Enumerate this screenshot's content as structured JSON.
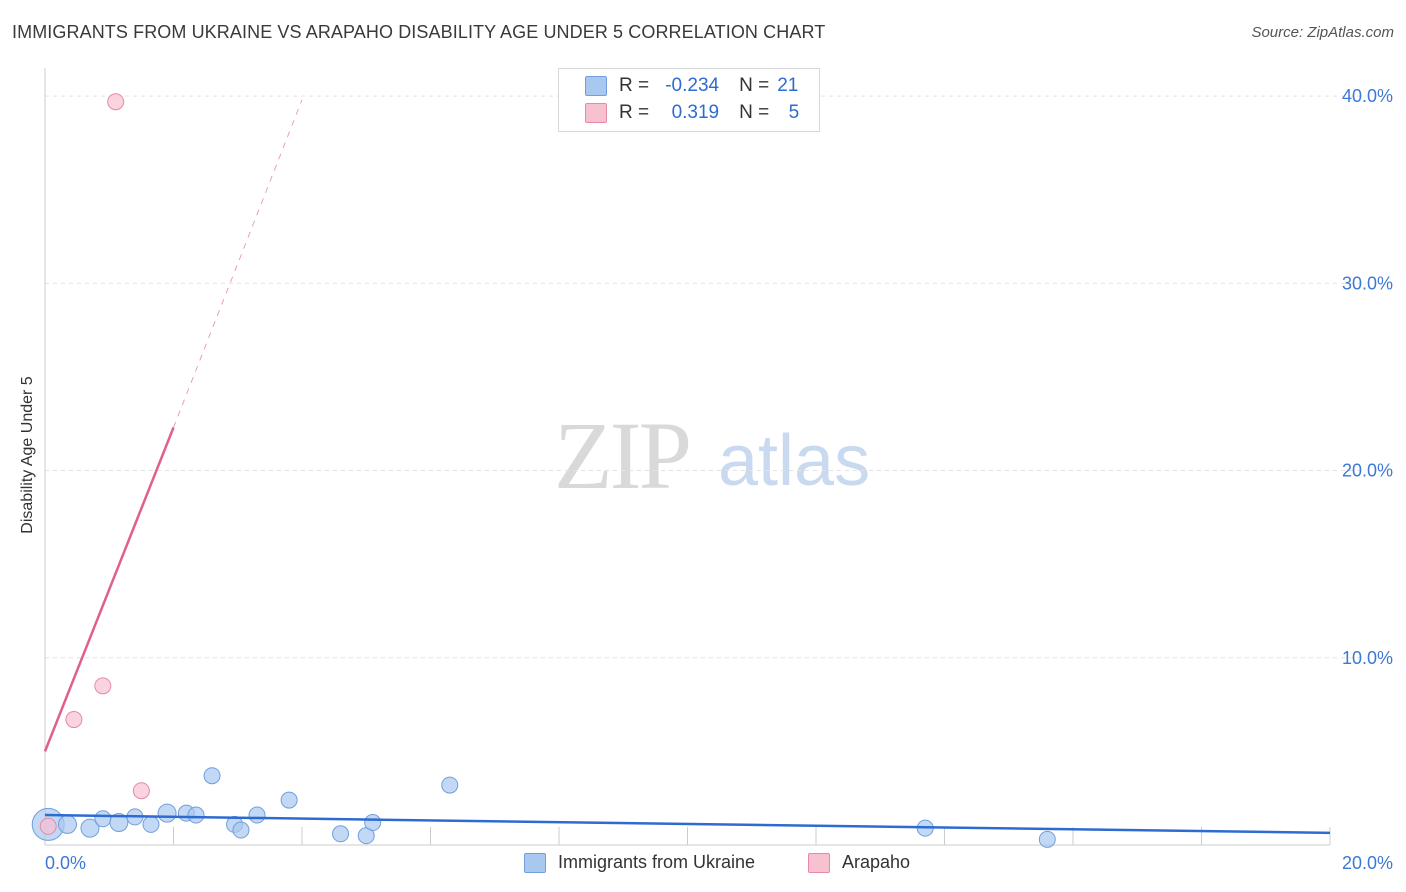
{
  "title": "IMMIGRANTS FROM UKRAINE VS ARAPAHO DISABILITY AGE UNDER 5 CORRELATION CHART",
  "source": "Source: ZipAtlas.com",
  "watermark": {
    "zip": "ZIP",
    "atlas": "atlas"
  },
  "legend_stats": [
    {
      "r_label": "R =",
      "r_value": "-0.234",
      "n_label": "N =",
      "n_value": "21",
      "color": "#a9c8f0",
      "border": "#6f9fdc"
    },
    {
      "r_label": "R =",
      "r_value": "0.319",
      "n_label": "N =",
      "n_value": "5",
      "color": "#f7c1d0",
      "border": "#e58aa7"
    }
  ],
  "chart_data": {
    "type": "scatter",
    "title": "IMMIGRANTS FROM UKRAINE VS ARAPAHO DISABILITY AGE UNDER 5 CORRELATION CHART",
    "xlabel": "",
    "ylabel": "Disability Age Under 5",
    "xlim": [
      0,
      20
    ],
    "ylim": [
      0,
      41.5
    ],
    "x_tick_labels": [
      "0.0%",
      "20.0%"
    ],
    "y_ticks": [
      10,
      20,
      30,
      40
    ],
    "y_tick_labels": [
      "10.0%",
      "20.0%",
      "30.0%",
      "40.0%"
    ],
    "grid": true,
    "legend_position": "bottom",
    "series": [
      {
        "name": "Immigrants from Ukraine",
        "color": "#a9c8f0",
        "stroke": "#6f9fdc",
        "line_color": "#2e6bd1",
        "points": [
          {
            "x": 0.05,
            "y": 1.1,
            "size": 16
          },
          {
            "x": 0.35,
            "y": 1.1,
            "size": 9
          },
          {
            "x": 0.7,
            "y": 0.9,
            "size": 9
          },
          {
            "x": 0.9,
            "y": 1.4,
            "size": 8
          },
          {
            "x": 1.15,
            "y": 1.2,
            "size": 9
          },
          {
            "x": 1.4,
            "y": 1.5,
            "size": 8
          },
          {
            "x": 1.65,
            "y": 1.1,
            "size": 8
          },
          {
            "x": 1.9,
            "y": 1.7,
            "size": 9
          },
          {
            "x": 2.2,
            "y": 1.7,
            "size": 8
          },
          {
            "x": 2.35,
            "y": 1.6,
            "size": 8
          },
          {
            "x": 2.6,
            "y": 3.7,
            "size": 8
          },
          {
            "x": 2.95,
            "y": 1.1,
            "size": 8
          },
          {
            "x": 3.05,
            "y": 0.8,
            "size": 8
          },
          {
            "x": 3.3,
            "y": 1.6,
            "size": 8
          },
          {
            "x": 3.8,
            "y": 2.4,
            "size": 8
          },
          {
            "x": 4.6,
            "y": 0.6,
            "size": 8
          },
          {
            "x": 5.0,
            "y": 0.5,
            "size": 8
          },
          {
            "x": 5.1,
            "y": 1.2,
            "size": 8
          },
          {
            "x": 6.3,
            "y": 3.2,
            "size": 8
          },
          {
            "x": 13.7,
            "y": 0.9,
            "size": 8
          },
          {
            "x": 15.6,
            "y": 0.3,
            "size": 8
          }
        ],
        "trend": {
          "x0": 0,
          "y0": 1.6,
          "x1": 20,
          "y1": 0.65
        }
      },
      {
        "name": "Arapaho",
        "color": "#f7c1d0",
        "stroke": "#e58aa7",
        "line_color": "#e0608a",
        "points": [
          {
            "x": 0.05,
            "y": 1.0,
            "size": 8
          },
          {
            "x": 0.45,
            "y": 6.7,
            "size": 8
          },
          {
            "x": 0.9,
            "y": 8.5,
            "size": 8
          },
          {
            "x": 1.5,
            "y": 2.9,
            "size": 8
          },
          {
            "x": 1.1,
            "y": 39.7,
            "size": 8
          }
        ],
        "trend": {
          "x0": 0,
          "y0": 5.0,
          "x1": 2.0,
          "y1": 22.3
        },
        "trend_dashed": {
          "x0": 2.0,
          "y0": 22.3,
          "x1": 4.0,
          "y1": 39.8
        }
      }
    ]
  }
}
